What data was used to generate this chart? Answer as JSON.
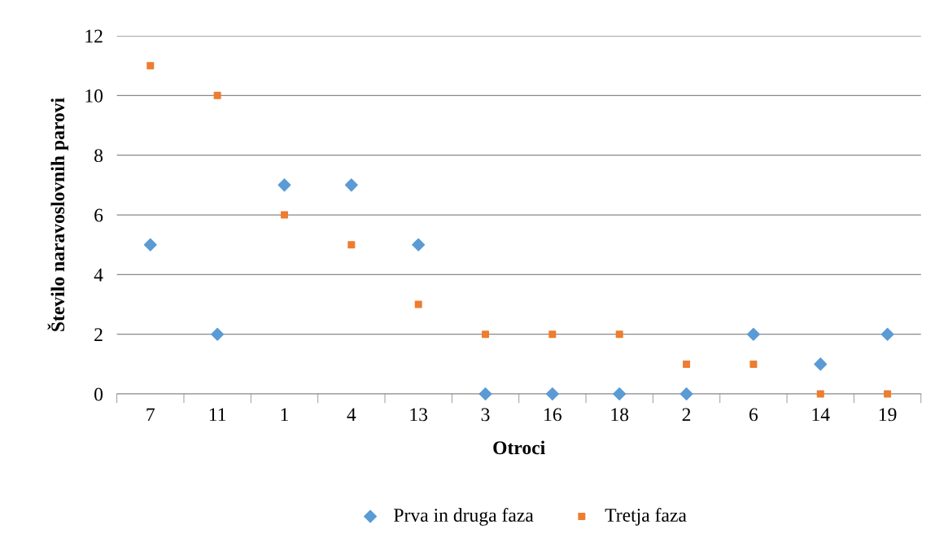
{
  "chart_data": {
    "type": "scatter",
    "xlabel": "Otroci",
    "ylabel": "Število naravoslovnih parovi",
    "categories": [
      "7",
      "11",
      "1",
      "4",
      "13",
      "3",
      "16",
      "18",
      "2",
      "6",
      "14",
      "19"
    ],
    "series": [
      {
        "name": "Prva in druga faza",
        "color": "#5b9bd5",
        "marker": "diamond",
        "values": [
          5,
          2,
          7,
          7,
          5,
          0,
          0,
          0,
          0,
          2,
          1,
          2
        ]
      },
      {
        "name": "Tretja faza",
        "color": "#ed7d31",
        "marker": "square",
        "values": [
          11,
          10,
          6,
          5,
          3,
          2,
          2,
          2,
          1,
          1,
          0,
          0
        ]
      }
    ],
    "ylim": [
      0,
      12
    ],
    "yticks": [
      0,
      2,
      4,
      6,
      8,
      10,
      12
    ],
    "grid": "y",
    "legend": "bottom"
  }
}
